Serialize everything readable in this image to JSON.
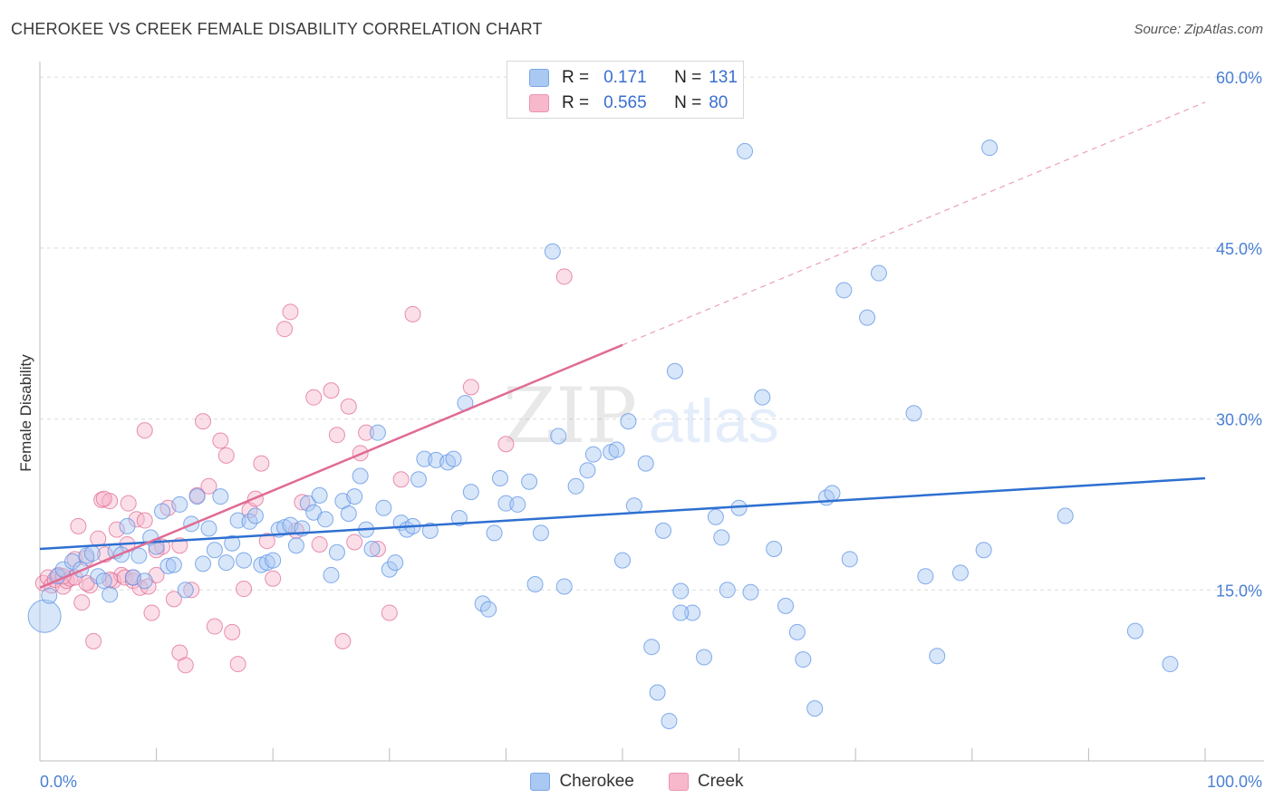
{
  "header": {
    "title": "CHEROKEE VS CREEK FEMALE DISABILITY CORRELATION CHART",
    "source": "Source: ZipAtlas.com"
  },
  "watermark": {
    "zip": "ZIP",
    "atlas": "atlas"
  },
  "legend": {
    "rows": [
      {
        "r_label": "R =",
        "r_value": "0.171",
        "n_label": "N =",
        "n_value": "131",
        "color": "#a9c8f2"
      },
      {
        "r_label": "R =",
        "r_value": "0.565",
        "n_label": "N =",
        "n_value": "80",
        "color": "#f7b8cc"
      }
    ]
  },
  "bottom_legend": [
    {
      "label": "Cherokee",
      "color": "#a9c8f2"
    },
    {
      "label": "Creek",
      "color": "#f7b8cc"
    }
  ],
  "chart_data": {
    "type": "scatter",
    "title": "CHEROKEE VS CREEK FEMALE DISABILITY CORRELATION CHART",
    "ylabel": "Female Disability",
    "xlabel": "",
    "xlim": [
      0,
      100
    ],
    "ylim": [
      0,
      62
    ],
    "x_tick_labels": [
      {
        "value": 0,
        "label": "0.0%"
      },
      {
        "value": 100,
        "label": "100.0%"
      }
    ],
    "y_tick_labels": [
      {
        "value": 15,
        "label": "15.0%"
      },
      {
        "value": 30,
        "label": "30.0%"
      },
      {
        "value": 45,
        "label": "45.0%"
      },
      {
        "value": 60,
        "label": "60.0%"
      }
    ],
    "grid": true,
    "legend_position": "top-center",
    "series": [
      {
        "name": "Cherokee",
        "color": "#5b92e5",
        "fill": "#a9c8f2",
        "r": 0.171,
        "n": 131,
        "trend": {
          "x": [
            0,
            100
          ],
          "y": [
            18.6,
            24.8
          ]
        },
        "points": [
          [
            0.4,
            12.7
          ],
          [
            0.8,
            14.5
          ],
          [
            1.5,
            16.2
          ],
          [
            2,
            16.8
          ],
          [
            2.8,
            17.5
          ],
          [
            3.5,
            16.8
          ],
          [
            4,
            18
          ],
          [
            4.5,
            18.2
          ],
          [
            5,
            16.2
          ],
          [
            5.5,
            15.8
          ],
          [
            6,
            14.6
          ],
          [
            6.5,
            18.4
          ],
          [
            7,
            18.1
          ],
          [
            7.5,
            20.6
          ],
          [
            8,
            16.1
          ],
          [
            8.5,
            18
          ],
          [
            9,
            15.8
          ],
          [
            9.5,
            19.6
          ],
          [
            10,
            18.8
          ],
          [
            10.5,
            21.9
          ],
          [
            11,
            17.1
          ],
          [
            11.5,
            17.2
          ],
          [
            12,
            22.5
          ],
          [
            12.5,
            15
          ],
          [
            13,
            20.8
          ],
          [
            13.5,
            23.2
          ],
          [
            14,
            17.3
          ],
          [
            14.5,
            20.4
          ],
          [
            15,
            18.5
          ],
          [
            15.5,
            23.2
          ],
          [
            16,
            17.4
          ],
          [
            16.5,
            19.1
          ],
          [
            17,
            21.1
          ],
          [
            17.5,
            17.6
          ],
          [
            18,
            21
          ],
          [
            18.5,
            21.5
          ],
          [
            19,
            17.2
          ],
          [
            19.5,
            17.4
          ],
          [
            20,
            17.6
          ],
          [
            20.5,
            20.3
          ],
          [
            21,
            20.5
          ],
          [
            21.5,
            20.7
          ],
          [
            22,
            18.9
          ],
          [
            22.5,
            20.4
          ],
          [
            23,
            22.6
          ],
          [
            23.5,
            21.8
          ],
          [
            24,
            23.3
          ],
          [
            24.5,
            21.2
          ],
          [
            25,
            16.3
          ],
          [
            25.5,
            18.3
          ],
          [
            26,
            22.8
          ],
          [
            26.5,
            21.7
          ],
          [
            27,
            23.2
          ],
          [
            27.5,
            25
          ],
          [
            28,
            20.3
          ],
          [
            28.5,
            18.6
          ],
          [
            29,
            28.8
          ],
          [
            29.5,
            22.2
          ],
          [
            30,
            16.8
          ],
          [
            30.5,
            17.4
          ],
          [
            31,
            20.9
          ],
          [
            31.5,
            20.3
          ],
          [
            32,
            20.6
          ],
          [
            32.5,
            24.7
          ],
          [
            33,
            26.5
          ],
          [
            33.5,
            20.2
          ],
          [
            34,
            26.4
          ],
          [
            35,
            26.2
          ],
          [
            35.5,
            26.5
          ],
          [
            36,
            21.3
          ],
          [
            36.5,
            31.4
          ],
          [
            37,
            23.6
          ],
          [
            38,
            13.8
          ],
          [
            38.5,
            13.3
          ],
          [
            39,
            20
          ],
          [
            39.5,
            24.8
          ],
          [
            40,
            22.6
          ],
          [
            41,
            22.5
          ],
          [
            42,
            24.5
          ],
          [
            42.5,
            15.5
          ],
          [
            43,
            20
          ],
          [
            44,
            44.7
          ],
          [
            44.5,
            28.5
          ],
          [
            45,
            15.3
          ],
          [
            46,
            24.1
          ],
          [
            47,
            25.5
          ],
          [
            47.5,
            26.9
          ],
          [
            49,
            27.1
          ],
          [
            49.5,
            27.3
          ],
          [
            50,
            17.6
          ],
          [
            50.5,
            29.8
          ],
          [
            51,
            22.4
          ],
          [
            52,
            26.1
          ],
          [
            52.5,
            10
          ],
          [
            53,
            6
          ],
          [
            53.5,
            20.2
          ],
          [
            54,
            3.5
          ],
          [
            54.5,
            34.2
          ],
          [
            55,
            14.9
          ],
          [
            56,
            13
          ],
          [
            57,
            9.1
          ],
          [
            58,
            21.4
          ],
          [
            58.5,
            19.6
          ],
          [
            59,
            15
          ],
          [
            60,
            22.2
          ],
          [
            60.5,
            53.5
          ],
          [
            61,
            14.8
          ],
          [
            62,
            31.9
          ],
          [
            63,
            18.6
          ],
          [
            64,
            13.6
          ],
          [
            65,
            11.3
          ],
          [
            65.5,
            8.9
          ],
          [
            66.5,
            4.6
          ],
          [
            67.5,
            23.1
          ],
          [
            68,
            23.5
          ],
          [
            69,
            41.3
          ],
          [
            69.5,
            17.7
          ],
          [
            71,
            38.9
          ],
          [
            72,
            42.8
          ],
          [
            75,
            30.5
          ],
          [
            76,
            16.2
          ],
          [
            77,
            9.2
          ],
          [
            79,
            16.5
          ],
          [
            81,
            18.5
          ],
          [
            81.5,
            53.8
          ],
          [
            88,
            21.5
          ],
          [
            94,
            11.4
          ],
          [
            97,
            8.5
          ],
          [
            55,
            13
          ]
        ]
      },
      {
        "name": "Creek",
        "color": "#e06b95",
        "fill": "#f7b8cc",
        "r": 0.565,
        "n": 80,
        "trend": {
          "x": [
            0,
            50
          ],
          "y": [
            15.2,
            36.5
          ]
        },
        "trend_extension": {
          "x": [
            50,
            100
          ],
          "y": [
            36.5,
            57.8
          ]
        },
        "points": [
          [
            0.3,
            15.6
          ],
          [
            0.7,
            16.1
          ],
          [
            1,
            15.4
          ],
          [
            1.3,
            15.9
          ],
          [
            1.6,
            16.3
          ],
          [
            2,
            15.3
          ],
          [
            2.3,
            15.8
          ],
          [
            2.6,
            16
          ],
          [
            3,
            17.7
          ],
          [
            3.3,
            20.6
          ],
          [
            3.6,
            13.9
          ],
          [
            4,
            17.8
          ],
          [
            4.3,
            15.4
          ],
          [
            4.6,
            10.5
          ],
          [
            5,
            19.5
          ],
          [
            5.3,
            22.9
          ],
          [
            5.6,
            18.1
          ],
          [
            6,
            22.8
          ],
          [
            6.3,
            15.8
          ],
          [
            6.6,
            20.3
          ],
          [
            7,
            16.3
          ],
          [
            7.3,
            16.1
          ],
          [
            7.6,
            22.6
          ],
          [
            8,
            15.8
          ],
          [
            8.3,
            21.2
          ],
          [
            8.6,
            15.2
          ],
          [
            9,
            21.1
          ],
          [
            9.3,
            15.3
          ],
          [
            9.6,
            13
          ],
          [
            10,
            16.3
          ],
          [
            10.5,
            18.8
          ],
          [
            11,
            22.2
          ],
          [
            11.5,
            14.2
          ],
          [
            12,
            9.5
          ],
          [
            12.5,
            8.4
          ],
          [
            13,
            15
          ],
          [
            13.5,
            23.3
          ],
          [
            14,
            29.8
          ],
          [
            14.5,
            24.1
          ],
          [
            15,
            11.8
          ],
          [
            15.5,
            28.1
          ],
          [
            16,
            26.8
          ],
          [
            16.5,
            11.3
          ],
          [
            17,
            8.5
          ],
          [
            17.5,
            15.1
          ],
          [
            18,
            22
          ],
          [
            18.5,
            23
          ],
          [
            19,
            26.1
          ],
          [
            19.5,
            19.3
          ],
          [
            20,
            16
          ],
          [
            21,
            37.9
          ],
          [
            21.5,
            39.4
          ],
          [
            22,
            20.2
          ],
          [
            22.5,
            22.7
          ],
          [
            23.5,
            31.9
          ],
          [
            24,
            19
          ],
          [
            25,
            32.5
          ],
          [
            25.5,
            28.6
          ],
          [
            26,
            10.5
          ],
          [
            26.5,
            31.1
          ],
          [
            27,
            19.2
          ],
          [
            27.5,
            27
          ],
          [
            28,
            28.8
          ],
          [
            29,
            18.6
          ],
          [
            30,
            13
          ],
          [
            31,
            24.7
          ],
          [
            32,
            39.2
          ],
          [
            37,
            32.8
          ],
          [
            40,
            27.8
          ],
          [
            45,
            42.5
          ],
          [
            9,
            29
          ],
          [
            5.5,
            23
          ],
          [
            7.5,
            19
          ],
          [
            10,
            18.5
          ],
          [
            12,
            18.9
          ],
          [
            6,
            15.9
          ],
          [
            8,
            16.1
          ],
          [
            4,
            15.6
          ],
          [
            3,
            16.1
          ],
          [
            2,
            16.2
          ]
        ]
      }
    ]
  }
}
